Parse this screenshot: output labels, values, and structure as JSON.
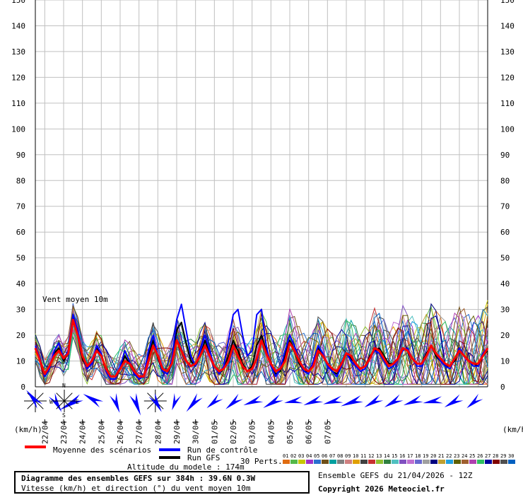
{
  "chart_data": {
    "type": "line",
    "title": "Diagramme des ensembles GEFS sur 384h : 39.6N 0.3W",
    "subtitle": "Vitesse (km/h) et direction (°) du vent moyen 10m",
    "series_label": "Vent moyen 10m",
    "unit_left": "(km/h)",
    "unit_right": "(km/h)",
    "ylim": [
      0,
      150
    ],
    "yticks": [
      0,
      10,
      20,
      30,
      40,
      50,
      60,
      70,
      80,
      90,
      100,
      110,
      120,
      130,
      140,
      150
    ],
    "grid": true,
    "x_date_labels": [
      "22/04",
      "23/04",
      "24/04",
      "25/04",
      "26/04",
      "27/04",
      "28/04",
      "29/04",
      "30/04",
      "01/05",
      "02/05",
      "03/05",
      "04/05",
      "05/05",
      "06/05",
      "07/05"
    ],
    "time_step_hours": 6,
    "mean_series": {
      "name": "Moyenne des scénarios",
      "color": "#ff0000",
      "values": [
        15,
        10,
        5,
        8,
        12,
        14,
        11,
        13,
        26,
        20,
        12,
        8,
        10,
        14,
        12,
        7,
        4,
        4,
        7,
        10,
        9,
        6,
        4,
        4,
        10,
        16,
        12,
        7,
        6,
        9,
        18,
        14,
        10,
        8,
        9,
        12,
        16,
        12,
        8,
        6,
        7,
        10,
        16,
        12,
        8,
        6,
        7,
        11,
        18,
        13,
        9,
        6,
        7,
        10,
        17,
        14,
        10,
        7,
        6,
        8,
        14,
        12,
        9,
        7,
        6,
        9,
        13,
        12,
        9,
        7,
        8,
        11,
        15,
        14,
        11,
        8,
        9,
        11,
        15,
        14,
        11,
        9,
        9,
        12,
        16,
        13,
        11,
        9,
        8,
        11,
        14,
        12,
        10,
        9,
        9,
        12,
        15
      ]
    },
    "control_series": {
      "name": "Run de contrôle",
      "color": "#0000ff",
      "values": [
        16,
        11,
        4,
        7,
        14,
        17,
        11,
        14,
        28,
        22,
        12,
        7,
        9,
        16,
        13,
        6,
        3,
        3,
        8,
        14,
        10,
        5,
        3,
        4,
        14,
        20,
        12,
        6,
        5,
        11,
        26,
        32,
        22,
        12,
        8,
        14,
        20,
        14,
        8,
        5,
        8,
        18,
        28,
        30,
        20,
        12,
        14,
        28,
        30,
        16,
        8,
        4,
        7,
        14,
        20,
        16,
        10,
        6,
        5,
        10,
        16,
        13,
        8,
        6,
        4,
        8,
        13,
        10,
        8,
        6,
        7,
        11,
        14,
        13,
        10,
        7,
        8,
        11,
        14,
        15,
        11,
        8,
        8,
        12,
        16,
        13,
        10,
        8,
        7,
        11,
        15,
        12,
        10,
        8,
        8,
        13,
        15
      ]
    },
    "gfs_series": {
      "name": "Run GFS",
      "color": "#000000",
      "values": [
        15,
        10,
        4,
        7,
        13,
        15,
        10,
        13,
        27,
        21,
        11,
        7,
        10,
        15,
        12,
        6,
        3,
        3,
        7,
        12,
        9,
        5,
        3,
        4,
        12,
        18,
        11,
        6,
        5,
        9,
        22,
        25,
        17,
        10,
        8,
        12,
        18,
        13,
        8,
        5,
        7,
        12,
        18,
        14,
        9,
        6,
        8,
        16,
        20,
        14,
        8,
        5,
        6,
        12,
        18,
        14,
        9,
        6,
        6,
        9,
        15,
        12,
        9,
        6,
        5,
        8,
        13,
        11,
        9,
        7,
        8,
        12,
        14,
        15,
        12,
        9,
        9,
        11,
        15,
        14,
        11,
        9,
        9,
        13,
        16,
        12,
        10,
        8,
        8,
        10,
        15,
        12,
        10,
        9,
        8,
        12,
        14
      ]
    },
    "perturbation_count_label": "30 Perts.",
    "perturbation_ids": [
      "01",
      "02",
      "03",
      "04",
      "05",
      "06",
      "07",
      "08",
      "09",
      "10",
      "11",
      "12",
      "13",
      "14",
      "15",
      "16",
      "17",
      "18",
      "19",
      "20",
      "21",
      "22",
      "23",
      "24",
      "25",
      "26",
      "27",
      "28",
      "29",
      "30"
    ],
    "perturbation_colors": [
      "#e06c10",
      "#54b848",
      "#c8c800",
      "#a030c8",
      "#2a70d0",
      "#705018",
      "#00a0a0",
      "#808080",
      "#d08080",
      "#e0a000",
      "#404040",
      "#c83030",
      "#90c030",
      "#308040",
      "#50c0c0",
      "#8050c0",
      "#c070d0",
      "#6868d0",
      "#a0a0a0",
      "#000080",
      "#c0a030",
      "#20a0e0",
      "#606000",
      "#a06030",
      "#b040b0",
      "#30c060",
      "#0000a0",
      "#800000",
      "#505050",
      "#0060c0"
    ],
    "wind_directions_deg": [
      320,
      150,
      240,
      300,
      160,
      160,
      150,
      200,
      220,
      230,
      230,
      250,
      240,
      260,
      250,
      255,
      250,
      240,
      240,
      250,
      260,
      240,
      230
    ],
    "wind_strength_rel": [
      12,
      10,
      18,
      12,
      10,
      14,
      10,
      6,
      12,
      8,
      10,
      10,
      12,
      8,
      10,
      10,
      14,
      10,
      10,
      10,
      10,
      10,
      8
    ]
  },
  "altitude_label": "Altitude du modele : 174m",
  "legend": {
    "mean": "Moyenne des scénarios",
    "control": "Run de contrôle",
    "gfs": "Run GFS",
    "perts": "30 Perts."
  },
  "compass": {
    "n": "N",
    "s": "S",
    "e": "E",
    "w": "W"
  },
  "footer": {
    "line1": "Diagramme des ensembles GEFS sur 384h : 39.6N 0.3W",
    "line2": "Vitesse (km/h) et direction (°) du vent moyen 10m",
    "run_info": "Ensemble GEFS du 21/04/2026 - 12Z",
    "copyright": "Copyright 2026 Meteociel.fr"
  }
}
